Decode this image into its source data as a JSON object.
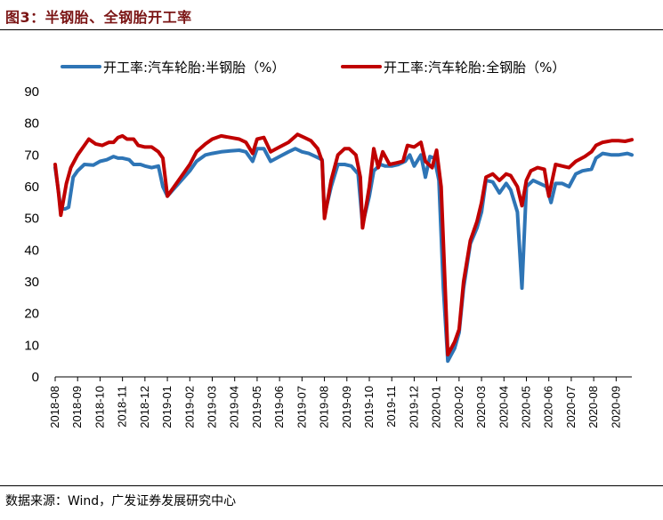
{
  "figure": {
    "title": "图3：半钢胎、全钢胎开工率",
    "source": "数据来源：Wind，广发证券发展研究中心"
  },
  "chart_data": {
    "type": "line",
    "title": "",
    "xlabel": "",
    "ylabel": "",
    "ylim": [
      0,
      90
    ],
    "yticks": [
      0,
      10,
      20,
      30,
      40,
      50,
      60,
      70,
      80,
      90
    ],
    "x_tick_labels": [
      "2018-08",
      "2018-09",
      "2018-10",
      "2018-11",
      "2018-12",
      "2019-01",
      "2019-02",
      "2019-03",
      "2019-04",
      "2019-05",
      "2019-06",
      "2019-07",
      "2019-08",
      "2019-09",
      "2019-10",
      "2019-11",
      "2019-12",
      "2020-01",
      "2020-02",
      "2020-03",
      "2020-04",
      "2020-05",
      "2020-06",
      "2020-07",
      "2020-08",
      "2020-09"
    ],
    "x_range": [
      0,
      25.7
    ],
    "grid": false,
    "legend_position": "top",
    "series": [
      {
        "name": "开工率:汽车轮胎:半钢胎（%）",
        "color": "#2e75b6",
        "points": [
          [
            0,
            66
          ],
          [
            0.12,
            60
          ],
          [
            0.25,
            53
          ],
          [
            0.45,
            53
          ],
          [
            0.6,
            53.5
          ],
          [
            0.8,
            63
          ],
          [
            1.0,
            65
          ],
          [
            1.3,
            67
          ],
          [
            1.7,
            66.8
          ],
          [
            2.0,
            68
          ],
          [
            2.3,
            68.5
          ],
          [
            2.6,
            69.5
          ],
          [
            2.8,
            69
          ],
          [
            3.0,
            69
          ],
          [
            3.3,
            68.5
          ],
          [
            3.5,
            67
          ],
          [
            3.8,
            67
          ],
          [
            4.0,
            66.5
          ],
          [
            4.3,
            66
          ],
          [
            4.6,
            66.5
          ],
          [
            4.8,
            60
          ],
          [
            5.0,
            57
          ],
          [
            5.5,
            61
          ],
          [
            6.0,
            65
          ],
          [
            6.3,
            68
          ],
          [
            6.7,
            70
          ],
          [
            7.0,
            70.5
          ],
          [
            7.4,
            71
          ],
          [
            7.8,
            71.3
          ],
          [
            8.2,
            71.5
          ],
          [
            8.5,
            71
          ],
          [
            8.8,
            68
          ],
          [
            9.0,
            72
          ],
          [
            9.3,
            72
          ],
          [
            9.6,
            68
          ],
          [
            10.0,
            69.5
          ],
          [
            10.4,
            71
          ],
          [
            10.7,
            72
          ],
          [
            11.0,
            71
          ],
          [
            11.3,
            70.5
          ],
          [
            11.6,
            69.5
          ],
          [
            11.9,
            68.5
          ],
          [
            12.0,
            51
          ],
          [
            12.3,
            60
          ],
          [
            12.6,
            67
          ],
          [
            12.9,
            67
          ],
          [
            13.2,
            66.5
          ],
          [
            13.5,
            64
          ],
          [
            13.7,
            48
          ],
          [
            14.0,
            57
          ],
          [
            14.2,
            65
          ],
          [
            14.5,
            67
          ],
          [
            14.7,
            66.5
          ],
          [
            15.0,
            66.5
          ],
          [
            15.3,
            67
          ],
          [
            15.6,
            68
          ],
          [
            15.8,
            70
          ],
          [
            16.0,
            66.5
          ],
          [
            16.3,
            70
          ],
          [
            16.5,
            63
          ],
          [
            16.7,
            69.5
          ],
          [
            16.9,
            69
          ],
          [
            17.1,
            62
          ],
          [
            17.3,
            28
          ],
          [
            17.5,
            5
          ],
          [
            17.8,
            9
          ],
          [
            18.0,
            14
          ],
          [
            18.2,
            28
          ],
          [
            18.5,
            42
          ],
          [
            18.8,
            47
          ],
          [
            19.0,
            52
          ],
          [
            19.2,
            62
          ],
          [
            19.5,
            61.5
          ],
          [
            19.8,
            58
          ],
          [
            20.1,
            61
          ],
          [
            20.3,
            59
          ],
          [
            20.6,
            52
          ],
          [
            20.8,
            28
          ],
          [
            21.0,
            60
          ],
          [
            21.3,
            62
          ],
          [
            21.6,
            61
          ],
          [
            21.9,
            60
          ],
          [
            22.1,
            55
          ],
          [
            22.3,
            61
          ],
          [
            22.6,
            61
          ],
          [
            22.9,
            60
          ],
          [
            23.2,
            64
          ],
          [
            23.5,
            65
          ],
          [
            23.9,
            65.5
          ],
          [
            24.1,
            69
          ],
          [
            24.4,
            70.5
          ],
          [
            24.8,
            70
          ],
          [
            25.1,
            70
          ],
          [
            25.5,
            70.5
          ],
          [
            25.7,
            70
          ]
        ]
      },
      {
        "name": "开工率:汽车轮胎:全钢胎（%）",
        "color": "#c00000",
        "points": [
          [
            0,
            67
          ],
          [
            0.15,
            58
          ],
          [
            0.25,
            51
          ],
          [
            0.5,
            61
          ],
          [
            0.7,
            66
          ],
          [
            1.0,
            70
          ],
          [
            1.3,
            73
          ],
          [
            1.5,
            75
          ],
          [
            1.8,
            73.5
          ],
          [
            2.1,
            73
          ],
          [
            2.4,
            74
          ],
          [
            2.6,
            74
          ],
          [
            2.8,
            75.5
          ],
          [
            3.0,
            76
          ],
          [
            3.2,
            75
          ],
          [
            3.5,
            75
          ],
          [
            3.7,
            73
          ],
          [
            4.0,
            72.5
          ],
          [
            4.3,
            72.5
          ],
          [
            4.6,
            71
          ],
          [
            4.8,
            69
          ],
          [
            5.0,
            57
          ],
          [
            5.5,
            62
          ],
          [
            6.0,
            67
          ],
          [
            6.3,
            71
          ],
          [
            6.7,
            73.5
          ],
          [
            7.0,
            75
          ],
          [
            7.4,
            76
          ],
          [
            7.8,
            75.5
          ],
          [
            8.2,
            75
          ],
          [
            8.5,
            74
          ],
          [
            8.8,
            70.5
          ],
          [
            9.0,
            75
          ],
          [
            9.3,
            75.5
          ],
          [
            9.6,
            71
          ],
          [
            10.0,
            72.5
          ],
          [
            10.4,
            74
          ],
          [
            10.8,
            76.5
          ],
          [
            11.1,
            75.5
          ],
          [
            11.4,
            74.5
          ],
          [
            11.7,
            72
          ],
          [
            11.9,
            68
          ],
          [
            12.0,
            50
          ],
          [
            12.3,
            62
          ],
          [
            12.6,
            70
          ],
          [
            12.9,
            72
          ],
          [
            13.1,
            72
          ],
          [
            13.4,
            70
          ],
          [
            13.6,
            63
          ],
          [
            13.7,
            47
          ],
          [
            14.0,
            60
          ],
          [
            14.2,
            72
          ],
          [
            14.4,
            66
          ],
          [
            14.6,
            71
          ],
          [
            14.9,
            67
          ],
          [
            15.2,
            67.5
          ],
          [
            15.5,
            68
          ],
          [
            15.7,
            73
          ],
          [
            16.0,
            72.5
          ],
          [
            16.3,
            74
          ],
          [
            16.5,
            68
          ],
          [
            16.8,
            66
          ],
          [
            17.0,
            71.5
          ],
          [
            17.2,
            60
          ],
          [
            17.5,
            7
          ],
          [
            17.8,
            11
          ],
          [
            18.0,
            15
          ],
          [
            18.2,
            30
          ],
          [
            18.5,
            43
          ],
          [
            18.8,
            49
          ],
          [
            19.0,
            55
          ],
          [
            19.2,
            63
          ],
          [
            19.5,
            64
          ],
          [
            19.8,
            62
          ],
          [
            20.1,
            64
          ],
          [
            20.3,
            63.5
          ],
          [
            20.6,
            60
          ],
          [
            20.8,
            54
          ],
          [
            21.0,
            62
          ],
          [
            21.2,
            65
          ],
          [
            21.5,
            66
          ],
          [
            21.8,
            65.5
          ],
          [
            22.0,
            57
          ],
          [
            22.3,
            67
          ],
          [
            22.6,
            66.5
          ],
          [
            22.9,
            66
          ],
          [
            23.2,
            68
          ],
          [
            23.6,
            69.5
          ],
          [
            23.9,
            71
          ],
          [
            24.1,
            73
          ],
          [
            24.4,
            74
          ],
          [
            24.8,
            74.5
          ],
          [
            25.1,
            74.5
          ],
          [
            25.4,
            74.3
          ],
          [
            25.7,
            74.8
          ]
        ]
      }
    ]
  }
}
